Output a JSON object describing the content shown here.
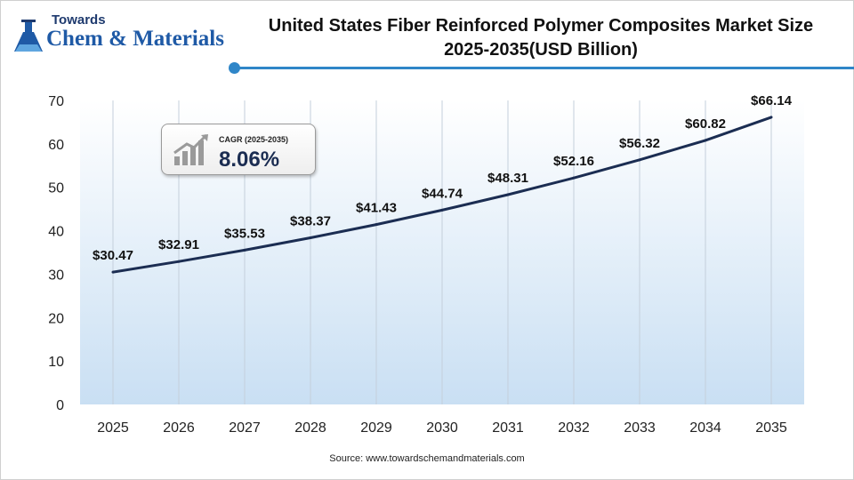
{
  "logo": {
    "small": "Towards",
    "big": "Chem & Materials"
  },
  "title": {
    "line1": "United States Fiber Reinforced Polymer Composites Market Size",
    "line2": "2025-2035(USD Billion)"
  },
  "cagr": {
    "label": "CAGR (2025-2035)",
    "value": "8.06%"
  },
  "source": "Source: www.towardschemandmaterials.com",
  "colors": {
    "line": "#1b2d52",
    "plot_bg_top": "#ffffff",
    "plot_bg_bottom": "#c9dff3",
    "accent": "#2f86c8"
  },
  "chart_data": {
    "type": "line",
    "x": [
      "2025",
      "2026",
      "2027",
      "2028",
      "2029",
      "2030",
      "2031",
      "2032",
      "2033",
      "2034",
      "2035"
    ],
    "values": [
      30.47,
      32.91,
      35.53,
      38.37,
      41.43,
      44.74,
      48.31,
      52.16,
      56.32,
      60.82,
      66.14
    ],
    "data_labels": [
      "$30.47",
      "$32.91",
      "$35.53",
      "$38.37",
      "$41.43",
      "$44.74",
      "$48.31",
      "$52.16",
      "$56.32",
      "$60.82",
      "$66.14"
    ],
    "ylim": [
      0,
      70
    ],
    "yticks": [
      0,
      10,
      20,
      30,
      40,
      50,
      60,
      70
    ],
    "grid": "vertical",
    "title": "United States Fiber Reinforced Polymer Composites Market Size 2025-2035(USD Billion)",
    "xlabel": "",
    "ylabel": ""
  }
}
